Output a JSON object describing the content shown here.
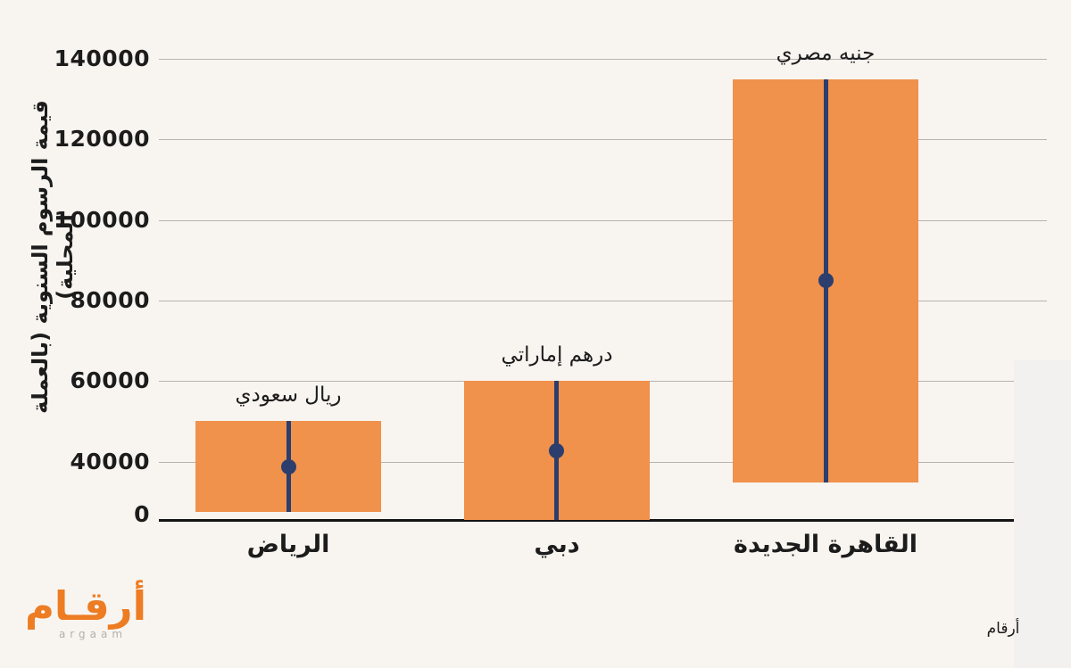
{
  "background": {
    "page_bg": "#f8f5f0",
    "watermark_bg": "#f3f1ef"
  },
  "colors": {
    "bar_fill": "#f0914c",
    "marker": "#2b3e6d",
    "gridline": "#b7b4b0",
    "axis_line": "#141414",
    "text": "#1c1c1c",
    "logo_orange": "#ed7c23",
    "logo_latin_gray": "#b3afab"
  },
  "branding": {
    "logo_arabic": "أرقـام",
    "logo_latin": "argaam",
    "source_label": "أرقام"
  },
  "chart_data": {
    "type": "bar",
    "subtype": "floating-range-bar-with-midpoint-marker",
    "title": "",
    "xlabel": "",
    "ylabel": "قيمة الرسوم السنوية (بالعملة المحلية)",
    "categories": [
      "الرياض",
      "دبي",
      "القاهرة الجديدة"
    ],
    "bars": [
      {
        "category": "الرياض",
        "currency_label": "ريال سعودي",
        "low": 27500,
        "high": 50000,
        "midpoint": 38750
      },
      {
        "category": "دبي",
        "currency_label": "درهم إماراتي",
        "low": 25500,
        "high": 60000,
        "midpoint": 42750
      },
      {
        "category": "القاهرة الجديدة",
        "currency_label": "جنيه مصري",
        "low": 35000,
        "high": 135000,
        "midpoint": 85000
      }
    ],
    "yticks": [
      140000,
      120000,
      100000,
      80000,
      60000,
      40000,
      0
    ],
    "ytick_labels": [
      "140000",
      "120000",
      "100000",
      "80000",
      "60000",
      "40000",
      "0"
    ],
    "ylim": [
      0,
      140000
    ],
    "grid": true,
    "legend": false,
    "notes": "baseline axis drawn below the 40000 gridline with the 0 tick label placed at the axis line"
  }
}
